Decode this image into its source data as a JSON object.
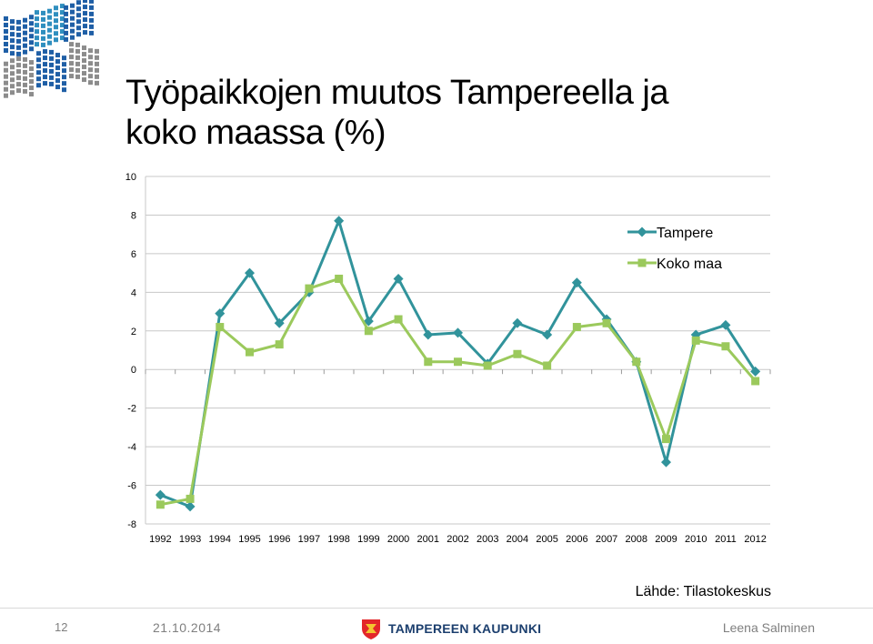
{
  "slide": {
    "title_line1": "Työpaikkojen muutos Tampereella ja",
    "title_line2": "koko maassa (%)",
    "source": "Lähde: Tilastokeskus",
    "page_number": "12",
    "date": "21.10.2014",
    "brand": "TAMPEREEN KAUPUNKI",
    "author": "Leena Salminen"
  },
  "colors": {
    "tampere": "#31939b",
    "koko_maa": "#9bc95c",
    "gridline": "#c8c8c8",
    "logo_blue": "#1f5fa6",
    "logo_teal": "#2f8fbf",
    "logo_gray": "#8c8c8c"
  },
  "chart_data": {
    "type": "line",
    "title": "Työpaikkojen muutos Tampereella ja koko maassa (%)",
    "x": [
      "1992",
      "1993",
      "1994",
      "1995",
      "1996",
      "1997",
      "1998",
      "1999",
      "2000",
      "2001",
      "2002",
      "2003",
      "2004",
      "2005",
      "2006",
      "2007",
      "2008",
      "2009",
      "2010",
      "2011",
      "2012"
    ],
    "series": [
      {
        "name": "Tampere",
        "values": [
          -6.5,
          -7.1,
          2.9,
          5.0,
          2.4,
          4.0,
          7.7,
          2.5,
          4.7,
          1.8,
          1.9,
          0.3,
          2.4,
          1.8,
          4.5,
          2.6,
          0.4,
          -4.8,
          1.8,
          2.3,
          -0.1
        ]
      },
      {
        "name": "Koko maa",
        "values": [
          -7.0,
          -6.7,
          2.2,
          0.9,
          1.3,
          4.2,
          4.7,
          2.0,
          2.6,
          0.4,
          0.4,
          0.2,
          0.8,
          0.2,
          2.2,
          2.4,
          0.4,
          -3.6,
          1.5,
          1.2,
          -0.6
        ]
      }
    ],
    "ylim": [
      -8,
      10
    ],
    "yticks": [
      "10",
      "8",
      "6",
      "4",
      "2",
      "0",
      "-2",
      "-4",
      "-6",
      "-8"
    ],
    "grid": true,
    "legend": "top-right",
    "xlabel": "",
    "ylabel": ""
  }
}
